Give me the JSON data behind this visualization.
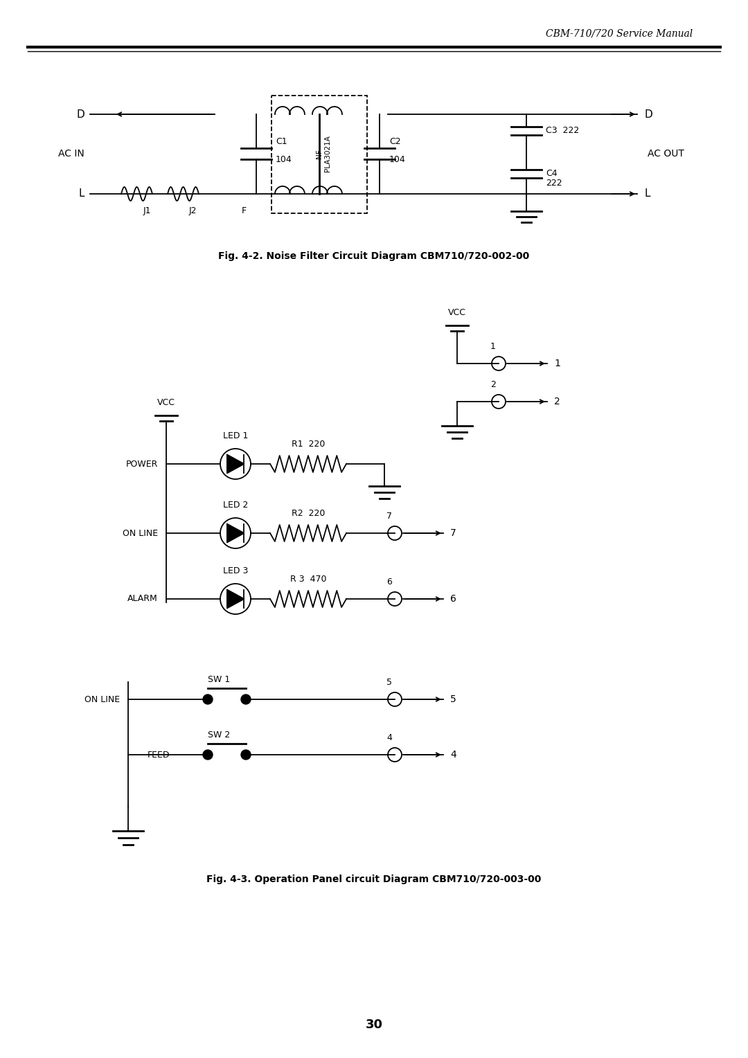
{
  "page_title": "CBM-710/720 Service Manual",
  "fig1_caption": "Fig. 4-2. Noise Filter Circuit Diagram CBM710/720-002-00",
  "fig2_caption": "Fig. 4-3. Operation Panel circuit Diagram CBM710/720-003-00",
  "page_number": "30",
  "bg_color": "#ffffff",
  "line_color": "#000000"
}
